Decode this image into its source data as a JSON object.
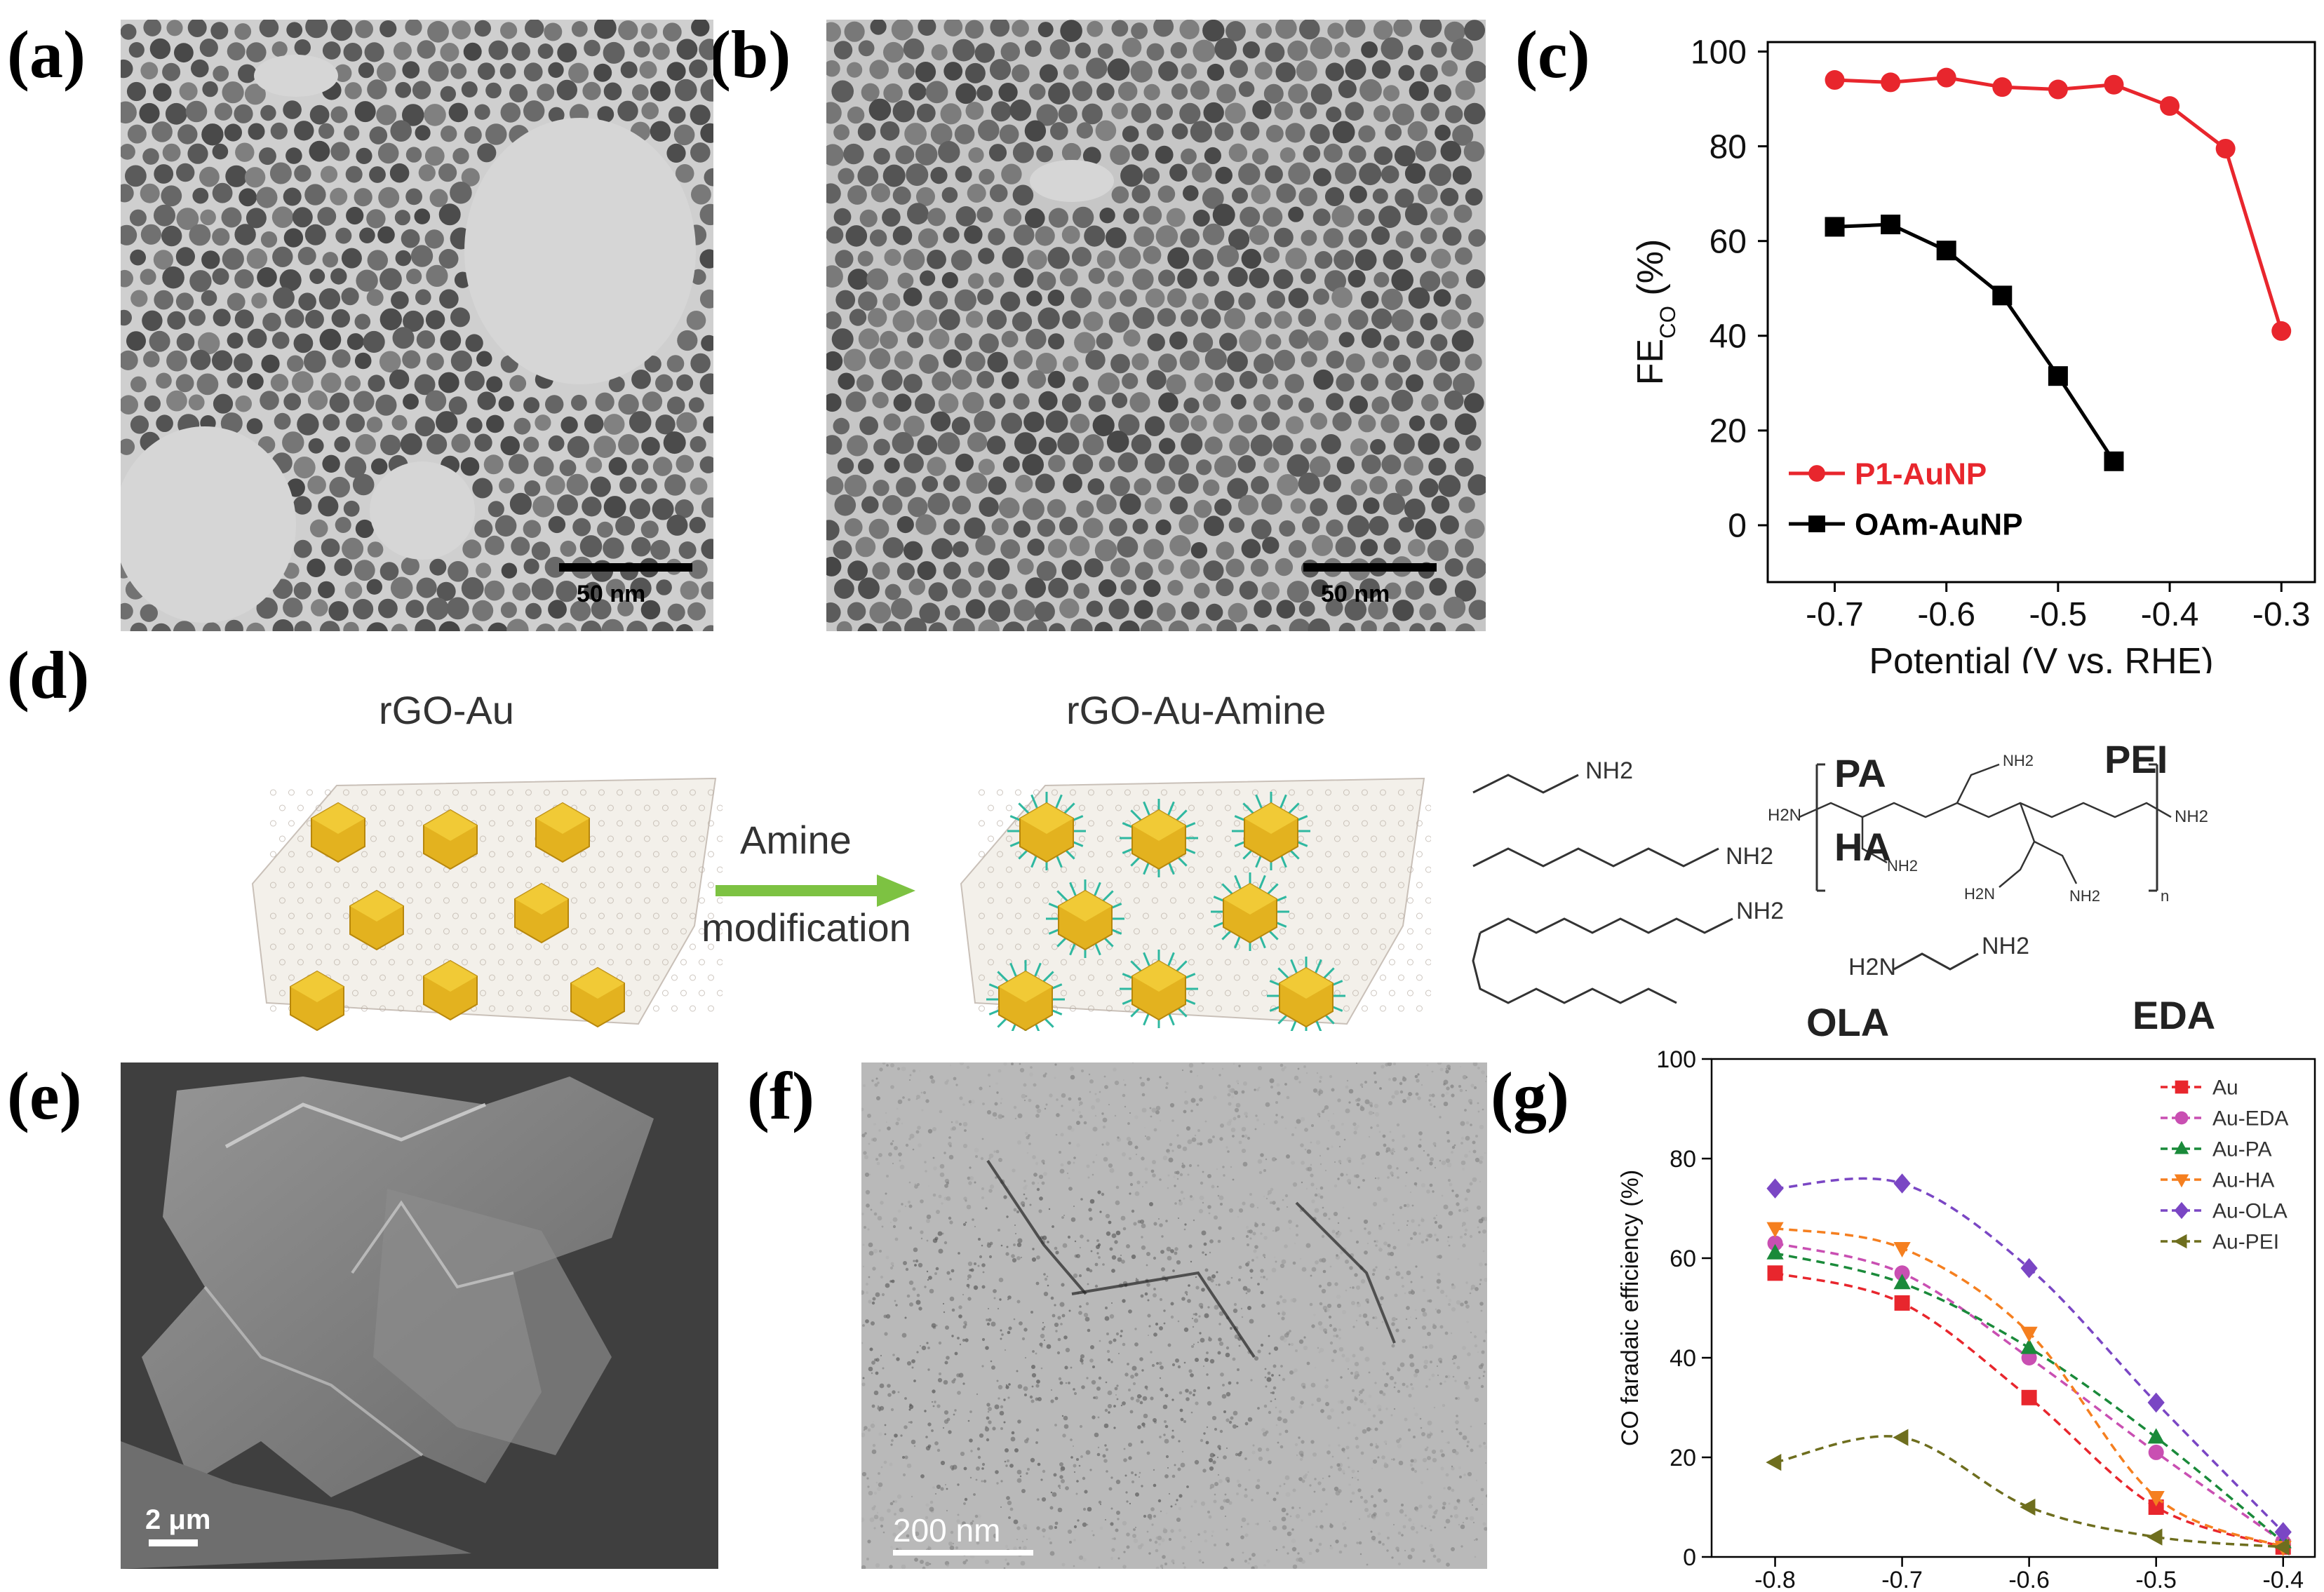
{
  "panels": {
    "a": {
      "letter": "(a)",
      "scale_bar": "50 nm"
    },
    "b": {
      "letter": "(b)",
      "scale_bar": "50 nm"
    },
    "c": {
      "letter": "(c)"
    },
    "d": {
      "letter": "(d)"
    },
    "e": {
      "letter": "(e)",
      "scale_bar": "2 μm"
    },
    "f": {
      "letter": "(f)",
      "scale_bar": "200 nm"
    },
    "g": {
      "letter": "(g)"
    }
  },
  "scheme": {
    "left_title": "rGO-Au",
    "right_title": "rGO-Au-Amine",
    "arrow_line1": "Amine",
    "arrow_line2": "modification",
    "amines": {
      "pa": "PA",
      "ha": "HA",
      "ola": "OLA",
      "pei": "PEI",
      "eda": "EDA",
      "nh2": "NH2",
      "pa_nh2": "NH2",
      "ha_nh2": "NH2",
      "ola_nh2": "NH2",
      "eda_h2n": "H2N",
      "eda_nh2": "NH2",
      "pei_h2n_left": "H2N",
      "pei_nh2_right": "NH2",
      "pei_n": "n"
    }
  },
  "chart_data": [
    {
      "id": "c",
      "type": "line",
      "xlabel": "Potential (V vs. RHE)",
      "ylabel": "FE",
      "ylabel_sub": "CO",
      "ylabel_suffix": " (%)",
      "xlim": [
        -0.76,
        -0.27
      ],
      "ylim": [
        -12,
        102
      ],
      "xticks": [
        -0.7,
        -0.6,
        -0.5,
        -0.4,
        -0.3
      ],
      "xtick_labels": [
        "-0.7",
        "-0.6",
        "-0.5",
        "-0.4",
        "-0.3"
      ],
      "yticks": [
        0,
        20,
        40,
        60,
        80,
        100
      ],
      "ytick_labels": [
        "0",
        "20",
        "40",
        "60",
        "80",
        "100"
      ],
      "legend_position": "lower-left",
      "series": [
        {
          "name": "P1-AuNP",
          "color": "#e8262d",
          "marker": "circle",
          "x": [
            -0.7,
            -0.65,
            -0.6,
            -0.55,
            -0.5,
            -0.45,
            -0.4,
            -0.35,
            -0.3
          ],
          "y": [
            94,
            93.5,
            94.5,
            92.5,
            92,
            93,
            88.5,
            79.5,
            41
          ]
        },
        {
          "name": "OAm-AuNP",
          "color": "#000000",
          "marker": "square",
          "x": [
            -0.7,
            -0.65,
            -0.6,
            -0.55,
            -0.5,
            -0.45
          ],
          "y": [
            63,
            63.5,
            58,
            48.5,
            31.5,
            13.5
          ]
        }
      ]
    },
    {
      "id": "g",
      "type": "line",
      "xlabel": "",
      "ylabel": "CO faradaic efficiency (%)",
      "xlim": [
        -0.85,
        -0.375
      ],
      "ylim": [
        0,
        100
      ],
      "xticks": [
        -0.8,
        -0.7,
        -0.6,
        -0.5,
        -0.4
      ],
      "xtick_labels": [
        "-0.8",
        "-0.7",
        "-0.6",
        "-0.5",
        "-0.4"
      ],
      "yticks": [
        0,
        20,
        40,
        60,
        80,
        100
      ],
      "ytick_labels": [
        "0",
        "20",
        "40",
        "60",
        "80",
        "100"
      ],
      "legend_position": "top-right",
      "series": [
        {
          "name": "Au",
          "color": "#e8262d",
          "marker": "square",
          "x": [
            -0.8,
            -0.7,
            -0.6,
            -0.5,
            -0.4
          ],
          "y": [
            57,
            51,
            32,
            10,
            2
          ]
        },
        {
          "name": "Au-EDA",
          "color": "#c94fb2",
          "marker": "circle",
          "x": [
            -0.8,
            -0.7,
            -0.6,
            -0.5,
            -0.4
          ],
          "y": [
            63,
            57,
            40,
            21,
            3
          ]
        },
        {
          "name": "Au-PA",
          "color": "#1a8a3a",
          "marker": "triangle-up",
          "x": [
            -0.8,
            -0.7,
            -0.6,
            -0.5,
            -0.4
          ],
          "y": [
            61,
            55,
            42,
            24,
            3
          ]
        },
        {
          "name": "Au-HA",
          "color": "#f57f1f",
          "marker": "triangle-down",
          "x": [
            -0.8,
            -0.7,
            -0.6,
            -0.5,
            -0.4
          ],
          "y": [
            66,
            62,
            45,
            12,
            2
          ]
        },
        {
          "name": "Au-OLA",
          "color": "#7a46c4",
          "marker": "diamond",
          "x": [
            -0.8,
            -0.7,
            -0.6,
            -0.5,
            -0.4
          ],
          "y": [
            74,
            75,
            58,
            31,
            5
          ]
        },
        {
          "name": "Au-PEI",
          "color": "#6e6e1e",
          "marker": "triangle-left",
          "x": [
            -0.8,
            -0.7,
            -0.6,
            -0.5,
            -0.4
          ],
          "y": [
            19,
            24,
            10,
            4,
            2
          ]
        }
      ]
    }
  ]
}
